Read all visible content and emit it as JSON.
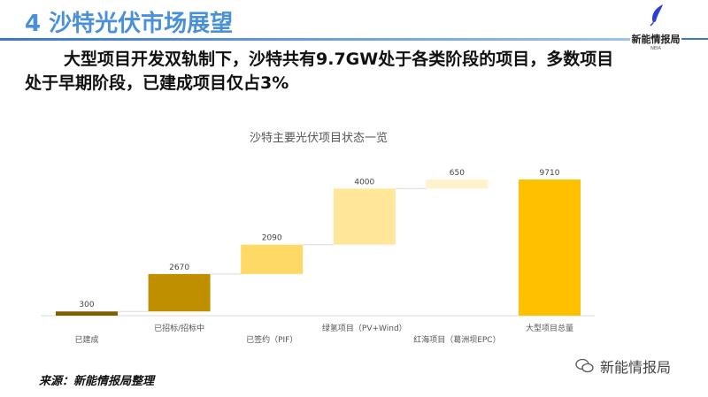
{
  "header": {
    "title": "4 沙特光伏市场展望",
    "logo_name": "新能情报局",
    "logo_sub": "NEIA"
  },
  "headline": "大型项目开发双轨制下，沙特共有9.7GW处于各类阶段的项目，多数项目处于早期阶段，已建成项目仅占3%",
  "source": "来源：新能情报局整理",
  "watermark": "新能情报局",
  "chart_data": {
    "type": "bar",
    "subtype": "waterfall",
    "title": "沙特主要光伏项目状态一览",
    "categories": [
      "已建成",
      "已招标/招标中",
      "已签约（PIF）",
      "绿氢项目（PV+Wind）",
      "红海项目（葛洲坝EPC）",
      "大型项目总量"
    ],
    "values": [
      300,
      2670,
      2090,
      4000,
      650,
      9710
    ],
    "is_total": [
      false,
      false,
      false,
      false,
      false,
      true
    ],
    "colors": [
      "#7f6000",
      "#bf8f00",
      "#ffd966",
      "#ffe699",
      "#fff2cc",
      "#ffc000"
    ],
    "ylim": [
      0,
      9710
    ],
    "grid": false,
    "legend": "none"
  }
}
